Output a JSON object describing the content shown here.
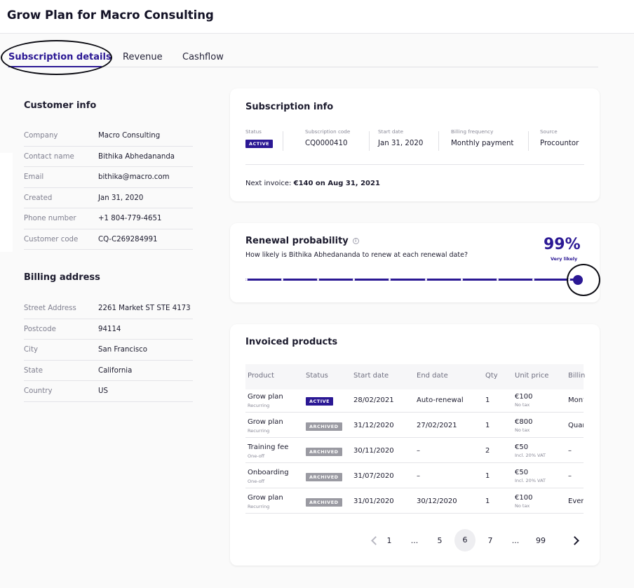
{
  "page": {
    "title": "Grow Plan for Macro Consulting"
  },
  "tabs": [
    {
      "label": "Subscription details",
      "active": true
    },
    {
      "label": "Revenue",
      "active": false
    },
    {
      "label": "Cashflow",
      "active": false
    }
  ],
  "customer_info": {
    "title": "Customer info",
    "rows": [
      {
        "label": "Company",
        "value": "Macro Consulting"
      },
      {
        "label": "Contact name",
        "value": "Bithika Abhedananda"
      },
      {
        "label": "Email",
        "value": "bithika@macro.com"
      },
      {
        "label": "Created",
        "value": "Jan 31, 2020"
      },
      {
        "label": "Phone number",
        "value": "+1 804-779-4651"
      },
      {
        "label": "Customer code",
        "value": "CQ-C269284991"
      }
    ]
  },
  "billing_address": {
    "title": "Billing address",
    "rows": [
      {
        "label": "Street Address",
        "value": "2261 Market ST STE 4173"
      },
      {
        "label": "Postcode",
        "value": "94114"
      },
      {
        "label": "City",
        "value": "San Francisco"
      },
      {
        "label": "State",
        "value": "California"
      },
      {
        "label": "Country",
        "value": "US"
      }
    ]
  },
  "subscription_info": {
    "title": "Subscription info",
    "status_label": "Status",
    "status_badge": "ACTIVE",
    "code_label": "Subscription code",
    "code": "CQ0000410",
    "start_label": "Start date",
    "start": "Jan 31, 2020",
    "frequency_label": "Billing frequency",
    "frequency": "Monthly payment",
    "source_label": "Source",
    "source": "Procountor",
    "next_invoice_prefix": "Next invoice: ",
    "next_invoice_value": "€140 on Aug 31, 2021"
  },
  "renewal": {
    "title": "Renewal probability",
    "info_icon": "i",
    "question": "How likely is Bithika Abhedananda to renew at each renewal date?",
    "percent_text": "99%",
    "likelihood": "Very likely",
    "probability": 0.99,
    "renewal_points": 10
  },
  "invoiced_products": {
    "title": "Invoiced products",
    "columns": [
      "Product",
      "Status",
      "Start date",
      "End date",
      "Qty",
      "Unit price",
      "Billin"
    ],
    "rows": [
      {
        "product": "Grow plan",
        "type": "Recurring",
        "status": "ACTIVE",
        "start": "28/02/2021",
        "end": "Auto-renewal",
        "qty": "1",
        "price": "€100",
        "price_note": "No tax",
        "billing": "Mont"
      },
      {
        "product": "Grow plan",
        "type": "Recurring",
        "status": "ARCHIVED",
        "start": "31/12/2020",
        "end": "27/02/2021",
        "qty": "1",
        "price": "€800",
        "price_note": "No tax",
        "billing": "Quar"
      },
      {
        "product": "Training fee",
        "type": "One-off",
        "status": "ARCHIVED",
        "start": "30/11/2020",
        "end": "–",
        "qty": "2",
        "price": "€50",
        "price_note": "Incl. 20% VAT",
        "billing": "–"
      },
      {
        "product": "Onboarding",
        "type": "One-off",
        "status": "ARCHIVED",
        "start": "31/07/2020",
        "end": "–",
        "qty": "1",
        "price": "€50",
        "price_note": "Incl. 20% VAT",
        "billing": "–"
      },
      {
        "product": "Grow plan",
        "type": "Recurring",
        "status": "ARCHIVED",
        "start": "31/01/2020",
        "end": "30/12/2020",
        "qty": "1",
        "price": "€100",
        "price_note": "No tax",
        "billing": "Ever"
      }
    ],
    "pagination": {
      "pages": [
        "1",
        "...",
        "5",
        "6",
        "7",
        "...",
        "99"
      ],
      "current": "6"
    }
  },
  "colors": {
    "accent": "#2b1894",
    "archived": "#9a9aa2"
  }
}
